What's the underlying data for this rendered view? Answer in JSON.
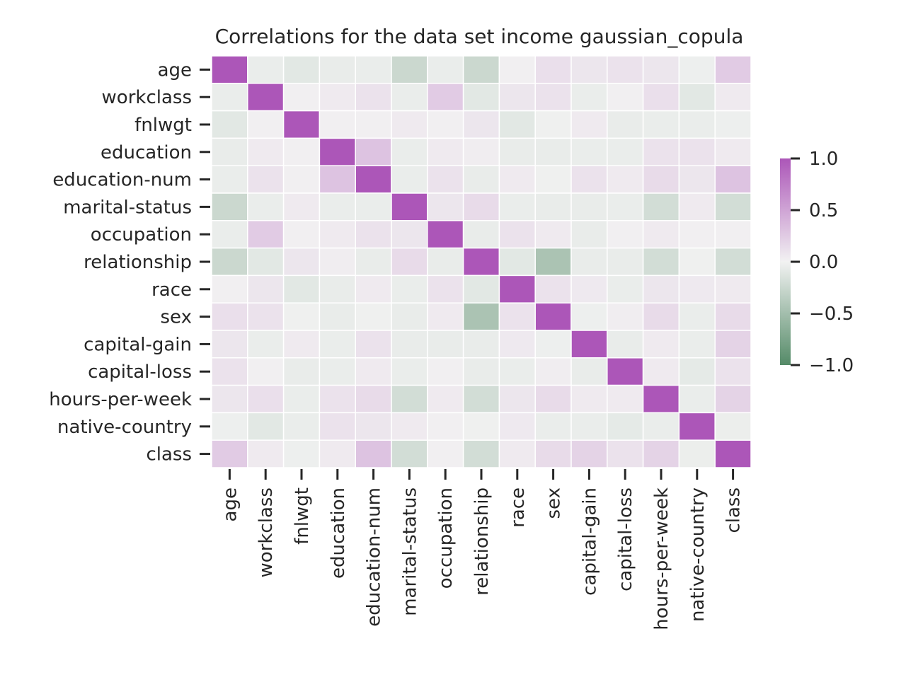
{
  "chart_data": {
    "type": "heatmap",
    "title": "Correlations for the data set income gaussian_copula",
    "xlabel": "",
    "ylabel": "",
    "variables": [
      "age",
      "workclass",
      "fnlwgt",
      "education",
      "education-num",
      "marital-status",
      "occupation",
      "relationship",
      "race",
      "sex",
      "capital-gain",
      "capital-loss",
      "hours-per-week",
      "native-country",
      "class"
    ],
    "matrix": [
      [
        1.0,
        -0.05,
        -0.1,
        -0.06,
        -0.05,
        -0.25,
        -0.05,
        -0.25,
        0.02,
        0.12,
        0.08,
        0.1,
        0.08,
        -0.03,
        0.25
      ],
      [
        -0.05,
        1.0,
        0.02,
        0.05,
        0.1,
        -0.05,
        0.25,
        -0.1,
        0.08,
        0.1,
        -0.05,
        0.02,
        0.12,
        -0.1,
        0.05
      ],
      [
        -0.1,
        0.02,
        1.0,
        0.02,
        0.02,
        0.05,
        0.02,
        0.08,
        -0.1,
        -0.02,
        0.05,
        -0.06,
        -0.05,
        -0.05,
        -0.03
      ],
      [
        -0.06,
        0.05,
        0.02,
        1.0,
        0.3,
        -0.05,
        0.05,
        0.03,
        -0.06,
        -0.06,
        -0.05,
        -0.05,
        0.1,
        0.1,
        0.05
      ],
      [
        -0.05,
        0.1,
        0.02,
        0.3,
        1.0,
        -0.05,
        0.1,
        -0.06,
        0.05,
        -0.02,
        0.1,
        0.05,
        0.15,
        0.08,
        0.3
      ],
      [
        -0.25,
        -0.05,
        0.05,
        -0.05,
        -0.05,
        1.0,
        0.08,
        0.15,
        -0.05,
        -0.06,
        -0.06,
        -0.05,
        -0.2,
        0.05,
        -0.2
      ],
      [
        -0.05,
        0.25,
        0.02,
        0.05,
        0.1,
        0.08,
        1.0,
        -0.06,
        0.1,
        0.05,
        -0.06,
        0.02,
        0.05,
        0.02,
        0.02
      ],
      [
        -0.25,
        -0.1,
        0.08,
        0.03,
        -0.06,
        0.15,
        -0.06,
        1.0,
        -0.1,
        -0.45,
        -0.06,
        -0.06,
        -0.2,
        -0.02,
        -0.2
      ],
      [
        0.02,
        0.08,
        -0.1,
        -0.06,
        0.05,
        -0.05,
        0.1,
        -0.1,
        1.0,
        0.1,
        0.06,
        -0.05,
        0.08,
        0.06,
        0.05
      ],
      [
        0.12,
        0.1,
        -0.02,
        -0.06,
        -0.02,
        -0.06,
        0.05,
        -0.45,
        0.1,
        1.0,
        -0.03,
        0.03,
        0.15,
        -0.05,
        0.15
      ],
      [
        0.08,
        -0.05,
        0.05,
        -0.05,
        0.1,
        -0.06,
        -0.06,
        -0.06,
        0.06,
        -0.03,
        1.0,
        -0.06,
        0.05,
        -0.05,
        0.2
      ],
      [
        0.1,
        0.02,
        -0.06,
        -0.05,
        0.05,
        -0.05,
        0.02,
        -0.06,
        -0.05,
        0.03,
        -0.06,
        1.0,
        0.05,
        -0.08,
        0.1
      ],
      [
        0.08,
        0.12,
        -0.05,
        0.1,
        0.15,
        -0.2,
        0.05,
        -0.2,
        0.08,
        0.15,
        0.05,
        0.05,
        1.0,
        -0.05,
        0.2
      ],
      [
        -0.03,
        -0.1,
        -0.05,
        0.1,
        0.08,
        0.05,
        0.02,
        -0.02,
        0.06,
        -0.05,
        -0.05,
        -0.08,
        -0.05,
        1.0,
        -0.04
      ],
      [
        0.25,
        0.05,
        -0.03,
        0.05,
        0.3,
        -0.2,
        0.02,
        -0.2,
        0.05,
        0.15,
        0.2,
        0.1,
        0.2,
        -0.04,
        1.0
      ]
    ],
    "vmin": -1.0,
    "vmax": 1.0,
    "colorbar": {
      "ticks": [
        1.0,
        0.5,
        0.0,
        -0.5,
        -1.0
      ],
      "tick_labels": [
        "1.0",
        "0.5",
        "0.0",
        "−0.5",
        "−1.0"
      ]
    },
    "colors": {
      "negative": "#548a67",
      "center": "#f2f2f2",
      "positive": "#ac56b8",
      "grid": "#ffffff",
      "text": "#262626"
    },
    "grid": false,
    "legend": "colorbar-right"
  }
}
